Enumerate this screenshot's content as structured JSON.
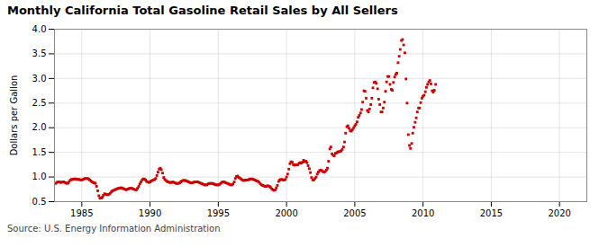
{
  "chart_data": {
    "type": "scatter",
    "title": "Monthly California Total Gasoline Retail Sales by All Sellers",
    "ylabel": "Dollars per Gallon",
    "annotations": [
      "Source: U.S. Energy Information Administration"
    ],
    "color": "#cc0000",
    "marker": "square",
    "grid": true,
    "xlim": [
      1983.0,
      2022.0
    ],
    "ylim": [
      0.5,
      4.0
    ],
    "xticks": [
      1985,
      1990,
      1995,
      2000,
      2005,
      2010,
      2015,
      2020
    ],
    "yticks": [
      0.5,
      {
        "value": 1.0,
        "label": "1.0"
      },
      1.5,
      {
        "value": 2.0,
        "label": "2.0"
      },
      2.5,
      {
        "value": 3.0,
        "label": "3.0"
      },
      3.5,
      {
        "value": 4.0,
        "label": "4.0"
      }
    ],
    "x": [
      1983.08,
      1983.17,
      1983.25,
      1983.33,
      1983.42,
      1983.5,
      1983.58,
      1983.67,
      1983.75,
      1983.83,
      1983.92,
      1984.0,
      1984.08,
      1984.17,
      1984.25,
      1984.33,
      1984.42,
      1984.5,
      1984.58,
      1984.67,
      1984.75,
      1984.83,
      1984.92,
      1985.0,
      1985.08,
      1985.17,
      1985.25,
      1985.33,
      1985.42,
      1985.5,
      1985.58,
      1985.67,
      1985.75,
      1985.83,
      1985.92,
      1986.0,
      1986.08,
      1986.17,
      1986.25,
      1986.33,
      1986.42,
      1986.5,
      1986.58,
      1986.67,
      1986.75,
      1986.83,
      1986.92,
      1987.0,
      1987.08,
      1987.17,
      1987.25,
      1987.33,
      1987.42,
      1987.5,
      1987.58,
      1987.67,
      1987.75,
      1987.83,
      1987.92,
      1988.0,
      1988.08,
      1988.17,
      1988.25,
      1988.33,
      1988.42,
      1988.5,
      1988.58,
      1988.67,
      1988.75,
      1988.83,
      1988.92,
      1989.0,
      1989.08,
      1989.17,
      1989.25,
      1989.33,
      1989.42,
      1989.5,
      1989.58,
      1989.67,
      1989.75,
      1989.83,
      1989.92,
      1990.0,
      1990.08,
      1990.17,
      1990.25,
      1990.33,
      1990.42,
      1990.5,
      1990.58,
      1990.67,
      1990.75,
      1990.83,
      1990.92,
      1991.0,
      1991.08,
      1991.17,
      1991.25,
      1991.33,
      1991.42,
      1991.5,
      1991.58,
      1991.67,
      1991.75,
      1991.83,
      1991.92,
      1992.0,
      1992.08,
      1992.17,
      1992.25,
      1992.33,
      1992.42,
      1992.5,
      1992.58,
      1992.67,
      1992.75,
      1992.83,
      1992.92,
      1993.0,
      1993.08,
      1993.17,
      1993.25,
      1993.33,
      1993.42,
      1993.5,
      1993.58,
      1993.67,
      1993.75,
      1993.83,
      1993.92,
      1994.0,
      1994.08,
      1994.17,
      1994.25,
      1994.33,
      1994.42,
      1994.5,
      1994.58,
      1994.67,
      1994.75,
      1994.83,
      1994.92,
      1995.0,
      1995.08,
      1995.17,
      1995.25,
      1995.33,
      1995.42,
      1995.5,
      1995.58,
      1995.67,
      1995.75,
      1995.83,
      1995.92,
      1996.0,
      1996.08,
      1996.17,
      1996.25,
      1996.33,
      1996.42,
      1996.5,
      1996.58,
      1996.67,
      1996.75,
      1996.83,
      1996.92,
      1997.0,
      1997.08,
      1997.17,
      1997.25,
      1997.33,
      1997.42,
      1997.5,
      1997.58,
      1997.67,
      1997.75,
      1997.83,
      1997.92,
      1998.0,
      1998.08,
      1998.17,
      1998.25,
      1998.33,
      1998.42,
      1998.5,
      1998.58,
      1998.67,
      1998.75,
      1998.83,
      1998.92,
      1999.0,
      1999.08,
      1999.17,
      1999.25,
      1999.33,
      1999.42,
      1999.5,
      1999.58,
      1999.67,
      1999.75,
      1999.83,
      1999.92,
      2000.0,
      2000.08,
      2000.17,
      2000.25,
      2000.33,
      2000.42,
      2000.5,
      2000.58,
      2000.67,
      2000.75,
      2000.83,
      2000.92,
      2001.0,
      2001.08,
      2001.17,
      2001.25,
      2001.33,
      2001.42,
      2001.5,
      2001.58,
      2001.67,
      2001.75,
      2001.83,
      2001.92,
      2002.0,
      2002.08,
      2002.17,
      2002.25,
      2002.33,
      2002.42,
      2002.5,
      2002.58,
      2002.67,
      2002.75,
      2002.83,
      2002.92,
      2003.0,
      2003.08,
      2003.17,
      2003.25,
      2003.33,
      2003.42,
      2003.5,
      2003.58,
      2003.67,
      2003.75,
      2003.83,
      2003.92,
      2004.0,
      2004.08,
      2004.17,
      2004.25,
      2004.33,
      2004.42,
      2004.5,
      2004.58,
      2004.67,
      2004.75,
      2004.83,
      2004.92,
      2005.0,
      2005.08,
      2005.17,
      2005.25,
      2005.33,
      2005.42,
      2005.5,
      2005.58,
      2005.67,
      2005.75,
      2005.83,
      2005.92,
      2006.0,
      2006.08,
      2006.17,
      2006.25,
      2006.33,
      2006.42,
      2006.5,
      2006.58,
      2006.67,
      2006.75,
      2006.83,
      2006.92,
      2007.0,
      2007.08,
      2007.17,
      2007.25,
      2007.33,
      2007.42,
      2007.5,
      2007.58,
      2007.67,
      2007.75,
      2007.83,
      2007.92,
      2008.0,
      2008.08,
      2008.17,
      2008.25,
      2008.33,
      2008.42,
      2008.5,
      2008.58,
      2008.67,
      2008.75,
      2008.83,
      2008.92,
      2009.0,
      2009.08,
      2009.17,
      2009.25,
      2009.33,
      2009.42,
      2009.5,
      2009.58,
      2009.67,
      2009.75,
      2009.83,
      2009.92,
      2010.0,
      2010.08,
      2010.17,
      2010.25,
      2010.33,
      2010.42,
      2010.5,
      2010.58,
      2010.67,
      2010.75,
      2010.83,
      2010.92
    ],
    "values": [
      0.87,
      0.89,
      0.9,
      0.9,
      0.89,
      0.89,
      0.9,
      0.9,
      0.89,
      0.88,
      0.87,
      0.88,
      0.91,
      0.94,
      0.95,
      0.95,
      0.96,
      0.96,
      0.96,
      0.95,
      0.95,
      0.95,
      0.94,
      0.94,
      0.95,
      0.96,
      0.97,
      0.97,
      0.97,
      0.96,
      0.94,
      0.92,
      0.9,
      0.89,
      0.88,
      0.87,
      0.81,
      0.72,
      0.62,
      0.57,
      0.57,
      0.59,
      0.63,
      0.66,
      0.65,
      0.64,
      0.64,
      0.65,
      0.67,
      0.7,
      0.72,
      0.73,
      0.74,
      0.75,
      0.76,
      0.77,
      0.77,
      0.78,
      0.78,
      0.77,
      0.76,
      0.75,
      0.74,
      0.75,
      0.76,
      0.77,
      0.77,
      0.77,
      0.76,
      0.75,
      0.74,
      0.74,
      0.77,
      0.81,
      0.86,
      0.9,
      0.94,
      0.96,
      0.96,
      0.94,
      0.91,
      0.9,
      0.89,
      0.9,
      0.92,
      0.93,
      0.94,
      0.95,
      0.97,
      1.03,
      1.1,
      1.16,
      1.18,
      1.15,
      1.08,
      0.99,
      0.95,
      0.93,
      0.91,
      0.9,
      0.89,
      0.89,
      0.89,
      0.9,
      0.89,
      0.88,
      0.87,
      0.87,
      0.87,
      0.88,
      0.9,
      0.92,
      0.93,
      0.93,
      0.93,
      0.92,
      0.91,
      0.9,
      0.89,
      0.88,
      0.88,
      0.89,
      0.9,
      0.9,
      0.9,
      0.9,
      0.89,
      0.88,
      0.87,
      0.86,
      0.85,
      0.84,
      0.84,
      0.84,
      0.86,
      0.87,
      0.87,
      0.87,
      0.87,
      0.86,
      0.85,
      0.84,
      0.84,
      0.84,
      0.85,
      0.87,
      0.89,
      0.9,
      0.9,
      0.89,
      0.88,
      0.87,
      0.86,
      0.85,
      0.84,
      0.84,
      0.86,
      0.9,
      0.97,
      1.01,
      1.02,
      0.99,
      0.98,
      0.96,
      0.94,
      0.93,
      0.93,
      0.94,
      0.94,
      0.94,
      0.95,
      0.96,
      0.96,
      0.96,
      0.95,
      0.94,
      0.93,
      0.92,
      0.91,
      0.89,
      0.86,
      0.84,
      0.83,
      0.82,
      0.81,
      0.81,
      0.82,
      0.82,
      0.81,
      0.79,
      0.76,
      0.74,
      0.73,
      0.74,
      0.78,
      0.83,
      0.91,
      0.94,
      0.95,
      0.95,
      0.94,
      0.94,
      0.95,
      1.0,
      1.06,
      1.16,
      1.27,
      1.31,
      1.3,
      1.25,
      1.24,
      1.25,
      1.25,
      1.25,
      1.28,
      1.29,
      1.28,
      1.3,
      1.34,
      1.31,
      1.32,
      1.29,
      1.23,
      1.17,
      1.09,
      0.99,
      0.94,
      0.94,
      0.97,
      1.0,
      1.06,
      1.1,
      1.13,
      1.14,
      1.13,
      1.11,
      1.1,
      1.11,
      1.14,
      1.18,
      1.32,
      1.57,
      1.61,
      1.47,
      1.44,
      1.43,
      1.48,
      1.49,
      1.51,
      1.51,
      1.52,
      1.53,
      1.56,
      1.61,
      1.71,
      1.89,
      2.02,
      2.04,
      1.99,
      1.94,
      1.93,
      1.96,
      2.0,
      2.04,
      2.07,
      2.12,
      2.21,
      2.25,
      2.3,
      2.37,
      2.52,
      2.75,
      2.74,
      2.6,
      2.35,
      2.32,
      2.38,
      2.47,
      2.6,
      2.81,
      2.92,
      2.93,
      2.9,
      2.79,
      2.58,
      2.47,
      2.32,
      2.32,
      2.4,
      2.52,
      2.74,
      2.93,
      3.04,
      3.04,
      2.88,
      2.78,
      2.76,
      2.92,
      3.03,
      3.08,
      3.11,
      3.32,
      3.45,
      3.59,
      3.77,
      3.79,
      3.68,
      3.52,
      2.99,
      2.5,
      1.86,
      1.64,
      1.58,
      1.68,
      1.89,
      2.01,
      2.11,
      2.2,
      2.32,
      2.4,
      2.4,
      2.51,
      2.6,
      2.64,
      2.66,
      2.73,
      2.82,
      2.88,
      2.93,
      2.96,
      2.89,
      2.75,
      2.72,
      2.76,
      2.88
    ]
  }
}
